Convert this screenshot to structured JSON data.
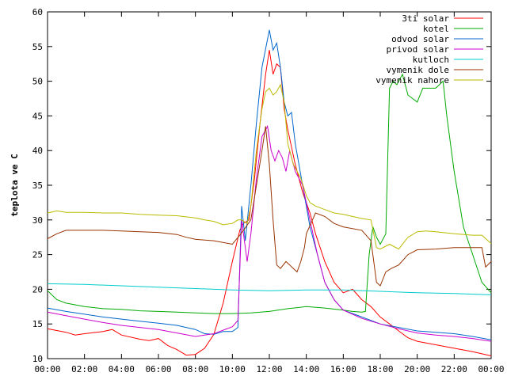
{
  "chart_data": {
    "type": "line",
    "title": "",
    "xlabel": "",
    "ylabel": "teplota ve C",
    "xlim": [
      0,
      24
    ],
    "ylim": [
      10,
      60
    ],
    "grid": false,
    "legend_position": "top-right",
    "x_tick_labels": [
      "00:00",
      "02:00",
      "04:00",
      "06:00",
      "08:00",
      "10:00",
      "12:00",
      "14:00",
      "16:00",
      "18:00",
      "20:00",
      "22:00",
      "00:00"
    ],
    "y_tick_labels": [
      "10",
      "15",
      "20",
      "25",
      "30",
      "35",
      "40",
      "45",
      "50",
      "55",
      "60"
    ],
    "series": [
      {
        "name": "3ti solar",
        "color": "#ff0000",
        "points": [
          [
            0,
            14.3
          ],
          [
            1,
            13.8
          ],
          [
            1.5,
            13.4
          ],
          [
            2,
            13.6
          ],
          [
            3,
            13.9
          ],
          [
            3.5,
            14.2
          ],
          [
            4,
            13.4
          ],
          [
            5,
            12.8
          ],
          [
            5.5,
            12.6
          ],
          [
            6,
            12.9
          ],
          [
            6.5,
            11.9
          ],
          [
            7,
            11.3
          ],
          [
            7.5,
            10.5
          ],
          [
            8,
            10.6
          ],
          [
            8.5,
            11.5
          ],
          [
            9,
            13.5
          ],
          [
            9.5,
            18
          ],
          [
            10,
            24
          ],
          [
            10.4,
            28.5
          ],
          [
            10.6,
            29.5
          ],
          [
            10.9,
            30
          ],
          [
            11.2,
            36
          ],
          [
            11.5,
            44
          ],
          [
            11.8,
            51
          ],
          [
            12,
            54.5
          ],
          [
            12.2,
            51
          ],
          [
            12.4,
            52.5
          ],
          [
            12.6,
            52
          ],
          [
            12.8,
            46
          ],
          [
            13,
            43
          ],
          [
            13.2,
            40.5
          ],
          [
            13.4,
            38
          ],
          [
            13.8,
            34
          ],
          [
            14.2,
            31
          ],
          [
            14.5,
            28
          ],
          [
            15,
            24
          ],
          [
            15.5,
            21
          ],
          [
            16,
            19.5
          ],
          [
            16.5,
            20
          ],
          [
            17,
            18.5
          ],
          [
            17.5,
            17.5
          ],
          [
            18,
            16
          ],
          [
            18.5,
            15
          ],
          [
            19,
            14
          ],
          [
            19.5,
            13
          ],
          [
            20,
            12.5
          ],
          [
            21,
            12
          ],
          [
            22,
            11.5
          ],
          [
            23,
            11
          ],
          [
            24,
            10.4
          ]
        ]
      },
      {
        "name": "kotel",
        "color": "#00aa00",
        "points": [
          [
            0,
            19.8
          ],
          [
            0.5,
            18.5
          ],
          [
            1,
            18
          ],
          [
            2,
            17.5
          ],
          [
            3,
            17.2
          ],
          [
            4,
            17.1
          ],
          [
            5,
            16.9
          ],
          [
            6,
            16.8
          ],
          [
            7,
            16.7
          ],
          [
            8,
            16.6
          ],
          [
            9,
            16.5
          ],
          [
            10,
            16.5
          ],
          [
            11,
            16.6
          ],
          [
            12,
            16.8
          ],
          [
            13,
            17.2
          ],
          [
            14,
            17.5
          ],
          [
            15,
            17.3
          ],
          [
            16,
            17
          ],
          [
            16.5,
            16.8
          ],
          [
            17,
            16.7
          ],
          [
            17.2,
            16.8
          ],
          [
            17.4,
            25
          ],
          [
            17.6,
            29
          ],
          [
            17.8,
            27.5
          ],
          [
            18,
            26.5
          ],
          [
            18.3,
            28
          ],
          [
            18.5,
            49
          ],
          [
            18.7,
            50
          ],
          [
            18.9,
            49.5
          ],
          [
            19.2,
            51
          ],
          [
            19.5,
            48
          ],
          [
            20,
            47
          ],
          [
            20.3,
            49
          ],
          [
            20.7,
            49
          ],
          [
            21,
            49
          ],
          [
            21.4,
            50
          ],
          [
            21.6,
            45
          ],
          [
            22,
            37
          ],
          [
            22.5,
            29
          ],
          [
            23,
            25
          ],
          [
            23.5,
            21
          ],
          [
            24,
            19.5
          ]
        ]
      },
      {
        "name": "odvod solar",
        "color": "#0066cc",
        "points": [
          [
            0,
            17.3
          ],
          [
            1,
            16.8
          ],
          [
            2,
            16.4
          ],
          [
            3,
            16
          ],
          [
            4,
            15.7
          ],
          [
            5,
            15.4
          ],
          [
            6,
            15.1
          ],
          [
            7,
            14.8
          ],
          [
            8,
            14.2
          ],
          [
            8.5,
            13.6
          ],
          [
            9,
            13.5
          ],
          [
            9.5,
            13.9
          ],
          [
            10,
            13.9
          ],
          [
            10.3,
            14.5
          ],
          [
            10.5,
            32
          ],
          [
            10.7,
            27
          ],
          [
            11,
            35
          ],
          [
            11.3,
            44
          ],
          [
            11.6,
            52
          ],
          [
            12,
            57.4
          ],
          [
            12.2,
            54.5
          ],
          [
            12.4,
            55.5
          ],
          [
            12.6,
            52
          ],
          [
            12.8,
            47
          ],
          [
            13,
            45
          ],
          [
            13.2,
            45.5
          ],
          [
            13.4,
            41
          ],
          [
            13.8,
            35
          ],
          [
            14.2,
            29
          ],
          [
            14.6,
            25
          ],
          [
            15,
            21
          ],
          [
            15.5,
            18.5
          ],
          [
            16,
            17
          ],
          [
            17,
            16
          ],
          [
            18,
            15
          ],
          [
            19,
            14.5
          ],
          [
            20,
            14
          ],
          [
            21,
            13.8
          ],
          [
            22,
            13.6
          ],
          [
            23,
            13.2
          ],
          [
            24,
            12.7
          ]
        ]
      },
      {
        "name": "privod solar",
        "color": "#cc00cc",
        "points": [
          [
            0,
            16.7
          ],
          [
            1,
            16.2
          ],
          [
            2,
            15.7
          ],
          [
            3,
            15.2
          ],
          [
            4,
            14.8
          ],
          [
            5,
            14.5
          ],
          [
            6,
            14.2
          ],
          [
            7,
            13.7
          ],
          [
            8,
            13.2
          ],
          [
            9,
            13.6
          ],
          [
            10,
            14.6
          ],
          [
            10.3,
            15.5
          ],
          [
            10.5,
            30
          ],
          [
            10.8,
            24
          ],
          [
            11,
            28
          ],
          [
            11.3,
            36
          ],
          [
            11.6,
            42
          ],
          [
            11.9,
            43.5
          ],
          [
            12.1,
            40
          ],
          [
            12.3,
            38.5
          ],
          [
            12.5,
            40
          ],
          [
            12.7,
            39
          ],
          [
            12.9,
            37
          ],
          [
            13.1,
            40
          ],
          [
            13.4,
            37
          ],
          [
            13.8,
            35
          ],
          [
            14.2,
            30
          ],
          [
            14.6,
            25
          ],
          [
            15,
            21
          ],
          [
            15.5,
            18.5
          ],
          [
            16,
            17
          ],
          [
            17,
            15.8
          ],
          [
            18,
            15
          ],
          [
            19,
            14.3
          ],
          [
            20,
            13.7
          ],
          [
            21,
            13.4
          ],
          [
            22,
            13.2
          ],
          [
            23,
            12.9
          ],
          [
            24,
            12.5
          ]
        ]
      },
      {
        "name": "kutloch",
        "color": "#00cccc",
        "points": [
          [
            0,
            20.8
          ],
          [
            2,
            20.7
          ],
          [
            4,
            20.5
          ],
          [
            6,
            20.3
          ],
          [
            8,
            20.1
          ],
          [
            10,
            19.9
          ],
          [
            12,
            19.8
          ],
          [
            14,
            19.9
          ],
          [
            16,
            19.9
          ],
          [
            18,
            19.7
          ],
          [
            20,
            19.5
          ],
          [
            22,
            19.4
          ],
          [
            24,
            19.2
          ]
        ]
      },
      {
        "name": "vymenik dole",
        "color": "#993300",
        "points": [
          [
            0,
            27.3
          ],
          [
            0.5,
            28
          ],
          [
            1,
            28.5
          ],
          [
            2,
            28.5
          ],
          [
            3,
            28.5
          ],
          [
            4,
            28.4
          ],
          [
            5,
            28.3
          ],
          [
            6,
            28.2
          ],
          [
            7,
            27.9
          ],
          [
            7.5,
            27.5
          ],
          [
            8,
            27.2
          ],
          [
            9,
            27
          ],
          [
            10,
            26.5
          ],
          [
            10.4,
            27.8
          ],
          [
            10.6,
            28.5
          ],
          [
            11,
            30
          ],
          [
            11.3,
            35
          ],
          [
            11.6,
            40
          ],
          [
            11.8,
            43.5
          ],
          [
            12,
            38
          ],
          [
            12.2,
            30
          ],
          [
            12.4,
            23.5
          ],
          [
            12.6,
            23
          ],
          [
            12.9,
            24
          ],
          [
            13.1,
            23.5
          ],
          [
            13.3,
            23
          ],
          [
            13.5,
            22.5
          ],
          [
            13.7,
            24
          ],
          [
            13.9,
            26
          ],
          [
            14,
            28
          ],
          [
            14.5,
            31
          ],
          [
            15,
            30.5
          ],
          [
            15.5,
            29.5
          ],
          [
            16,
            29
          ],
          [
            17,
            28.5
          ],
          [
            17.5,
            27
          ],
          [
            17.8,
            21
          ],
          [
            18,
            20.5
          ],
          [
            18.3,
            22.5
          ],
          [
            18.6,
            23
          ],
          [
            19,
            23.5
          ],
          [
            19.5,
            25
          ],
          [
            20,
            25.7
          ],
          [
            21,
            25.8
          ],
          [
            22,
            26
          ],
          [
            23,
            26
          ],
          [
            23.5,
            26
          ],
          [
            23.7,
            23.2
          ],
          [
            24,
            24
          ]
        ]
      },
      {
        "name": "vymenik nahore",
        "color": "#bbbb00",
        "points": [
          [
            0,
            31
          ],
          [
            0.5,
            31.3
          ],
          [
            1,
            31.1
          ],
          [
            2,
            31.1
          ],
          [
            3,
            31
          ],
          [
            4,
            31
          ],
          [
            5,
            30.8
          ],
          [
            6,
            30.7
          ],
          [
            7,
            30.6
          ],
          [
            8,
            30.3
          ],
          [
            8.5,
            30
          ],
          [
            9,
            29.8
          ],
          [
            9.5,
            29.3
          ],
          [
            10,
            29.5
          ],
          [
            10.3,
            30
          ],
          [
            10.5,
            30
          ],
          [
            10.8,
            29.5
          ],
          [
            11,
            32
          ],
          [
            11.3,
            40
          ],
          [
            11.6,
            46
          ],
          [
            11.8,
            48.5
          ],
          [
            12,
            49
          ],
          [
            12.2,
            48
          ],
          [
            12.4,
            48.5
          ],
          [
            12.6,
            49.5
          ],
          [
            12.8,
            47
          ],
          [
            13,
            41
          ],
          [
            13.3,
            38
          ],
          [
            13.7,
            36
          ],
          [
            14,
            33.5
          ],
          [
            14.2,
            32.5
          ],
          [
            14.5,
            32
          ],
          [
            15,
            31.5
          ],
          [
            15.5,
            31
          ],
          [
            16,
            30.8
          ],
          [
            16.5,
            30.5
          ],
          [
            17,
            30.2
          ],
          [
            17.5,
            30
          ],
          [
            17.8,
            26
          ],
          [
            18,
            25.8
          ],
          [
            18.5,
            26.5
          ],
          [
            19,
            25.8
          ],
          [
            19.5,
            27.5
          ],
          [
            20,
            28.3
          ],
          [
            20.5,
            28.4
          ],
          [
            21,
            28.3
          ],
          [
            22,
            28
          ],
          [
            23,
            27.8
          ],
          [
            23.5,
            27.8
          ],
          [
            24,
            26.6
          ]
        ]
      }
    ]
  }
}
